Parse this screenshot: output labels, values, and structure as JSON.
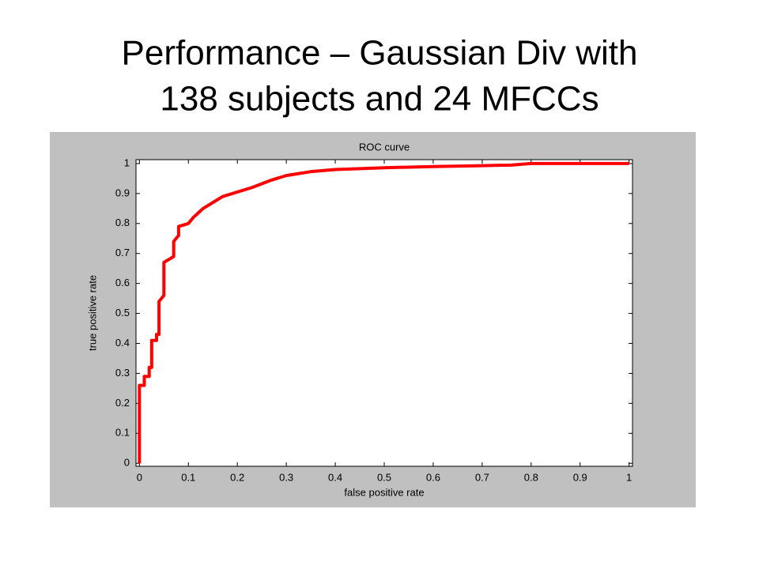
{
  "slide_title": [
    "Performance – Gaussian Div with",
    "138 subjects and 24 MFCCs"
  ],
  "chart_data": {
    "type": "line",
    "title": "ROC curve",
    "x_label": "false positive rate",
    "y_label": "true positive rate",
    "x": [
      0,
      0,
      0.01,
      0.01,
      0.02,
      0.02,
      0.025,
      0.025,
      0.035,
      0.035,
      0.04,
      0.04,
      0.045,
      0.05,
      0.05,
      0.06,
      0.07,
      0.07,
      0.08,
      0.08,
      0.1,
      0.11,
      0.13,
      0.15,
      0.17,
      0.2,
      0.23,
      0.27,
      0.3,
      0.35,
      0.4,
      0.5,
      0.6,
      0.7,
      0.76,
      0.8,
      1
    ],
    "series": [
      {
        "color": "#ff0000",
        "values": [
          0,
          0.26,
          0.26,
          0.29,
          0.29,
          0.32,
          0.32,
          0.41,
          0.41,
          0.43,
          0.43,
          0.54,
          0.55,
          0.56,
          0.67,
          0.68,
          0.69,
          0.74,
          0.76,
          0.79,
          0.8,
          0.82,
          0.85,
          0.87,
          0.89,
          0.905,
          0.92,
          0.945,
          0.96,
          0.973,
          0.98,
          0.986,
          0.99,
          0.993,
          0.995,
          1,
          1
        ]
      }
    ],
    "xlim": [
      -0.007,
      1.007
    ],
    "ylim": [
      -0.01,
      1.013
    ],
    "xticks": [
      0,
      0.1,
      0.2,
      0.3,
      0.4,
      0.5,
      0.6,
      0.7,
      0.8,
      0.9,
      1
    ],
    "yticks": [
      0,
      0.1,
      0.2,
      0.3,
      0.4,
      0.5,
      0.6,
      0.7,
      0.8,
      0.9,
      1
    ],
    "grid": false
  }
}
